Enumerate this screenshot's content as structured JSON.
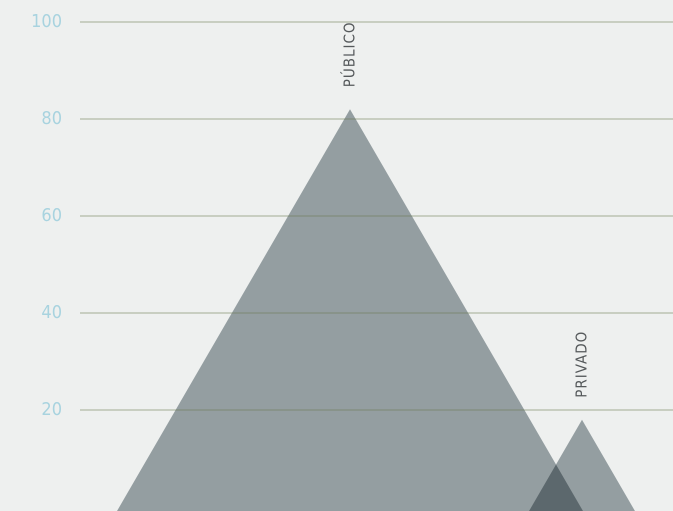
{
  "chart_data": {
    "type": "triangle",
    "categories": [
      "PÚBLICO",
      "PRIVADO"
    ],
    "values": [
      82,
      18
    ],
    "color": "#8e999e",
    "ylim": [
      0,
      100
    ],
    "yticks": [
      20,
      40,
      60,
      80,
      100
    ],
    "grid": true
  }
}
